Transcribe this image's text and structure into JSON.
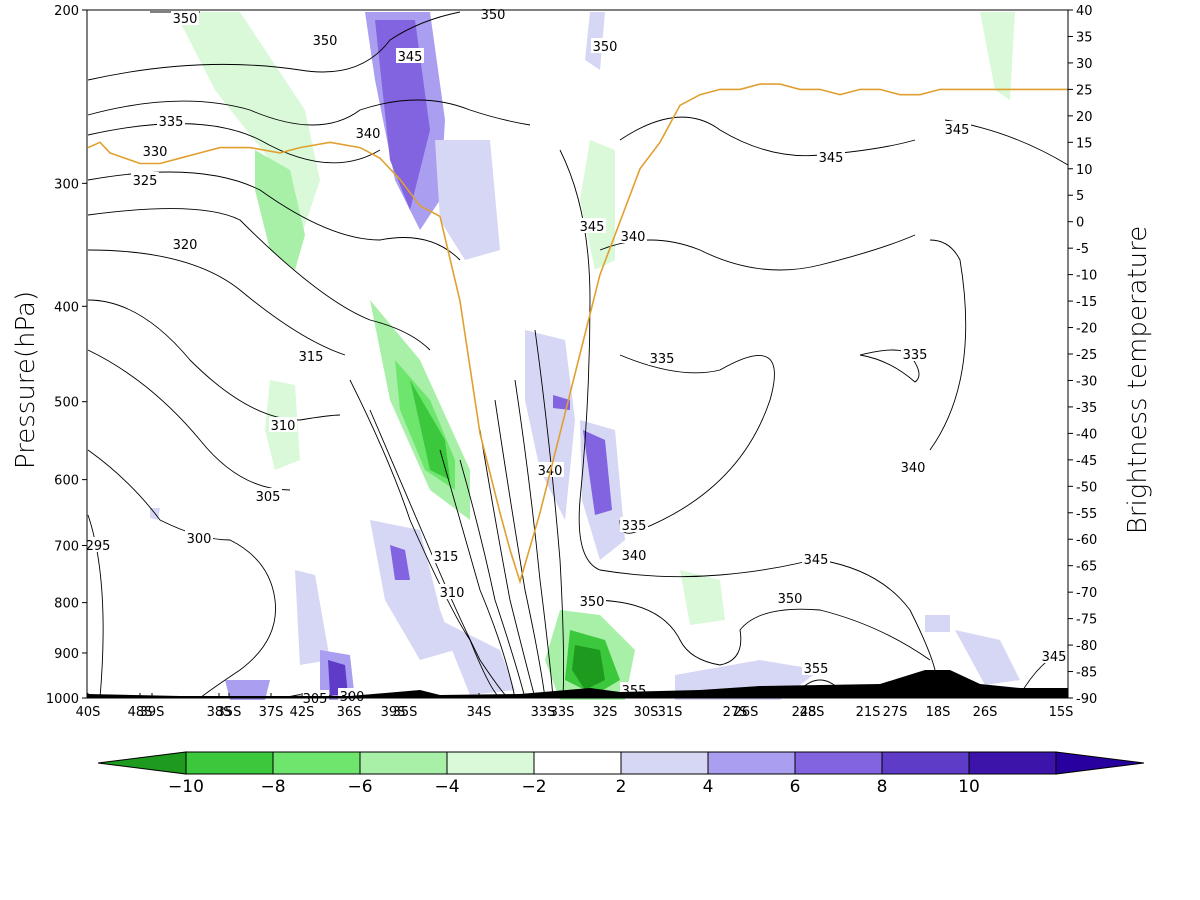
{
  "chart_data": {
    "type": "cross-section",
    "ylabel_left": "Pressure(hPa)",
    "ylabel_right": "Brightness temperature",
    "left_axis": {
      "ticks": [
        200,
        300,
        400,
        500,
        600,
        700,
        800,
        900,
        1000
      ],
      "ylim": [
        1000,
        200
      ],
      "scale": "log"
    },
    "right_axis": {
      "ticks": [
        40,
        35,
        30,
        25,
        20,
        15,
        10,
        5,
        0,
        -5,
        -10,
        -15,
        -20,
        -25,
        -30,
        -35,
        -40,
        -45,
        -50,
        -55,
        -60,
        -65,
        -70,
        -75,
        -80,
        -85,
        -90
      ],
      "ylim": [
        -90,
        40
      ]
    },
    "x_tick_labels": [
      "40S",
      "48S",
      "39S",
      "38S",
      "35S",
      "37S",
      "42S",
      "36S",
      "39S",
      "35S",
      "34S",
      "33S",
      "33S",
      "32S",
      "30S",
      "31S",
      "27S",
      "26S",
      "24S",
      "28S",
      "21S",
      "27S",
      "18S",
      "26S",
      "15S"
    ],
    "contour_labels": [
      "350",
      "350",
      "350",
      "350",
      "345",
      "335",
      "330",
      "340",
      "325",
      "320",
      "345",
      "340",
      "345",
      "345",
      "315",
      "335",
      "335",
      "310",
      "340",
      "305",
      "340",
      "335",
      "300",
      "340",
      "345",
      "295",
      "315",
      "310",
      "350",
      "350",
      "355",
      "345",
      "355",
      "305",
      "300"
    ],
    "colorbar": {
      "ticks": [
        -10,
        -8,
        -6,
        -4,
        -2,
        2,
        4,
        6,
        8,
        10
      ],
      "colors": [
        "#1e9a1e",
        "#3cc83c",
        "#6ee66e",
        "#a8f0a8",
        "#d9f9d9",
        "#ffffff",
        "#d6d6f5",
        "#a99ef0",
        "#8263e0",
        "#5e3cc8",
        "#3c14aa",
        "#2800a0"
      ]
    },
    "brightness_temperature_line": {
      "color": "#e0a030",
      "values": [
        14,
        15,
        13,
        12,
        11,
        11,
        12,
        13,
        14,
        14,
        13,
        14,
        15,
        14,
        12,
        8,
        3,
        1,
        -15,
        -40,
        -55,
        -62,
        -68,
        -55,
        -25,
        -10,
        10,
        15,
        22,
        24,
        25,
        25,
        26,
        26,
        25,
        25,
        24,
        25,
        25,
        24,
        24,
        25,
        25,
        25,
        25,
        25
      ]
    },
    "colors": {
      "contour": "#000000",
      "terrain": "#000000",
      "frame": "#000000"
    }
  }
}
